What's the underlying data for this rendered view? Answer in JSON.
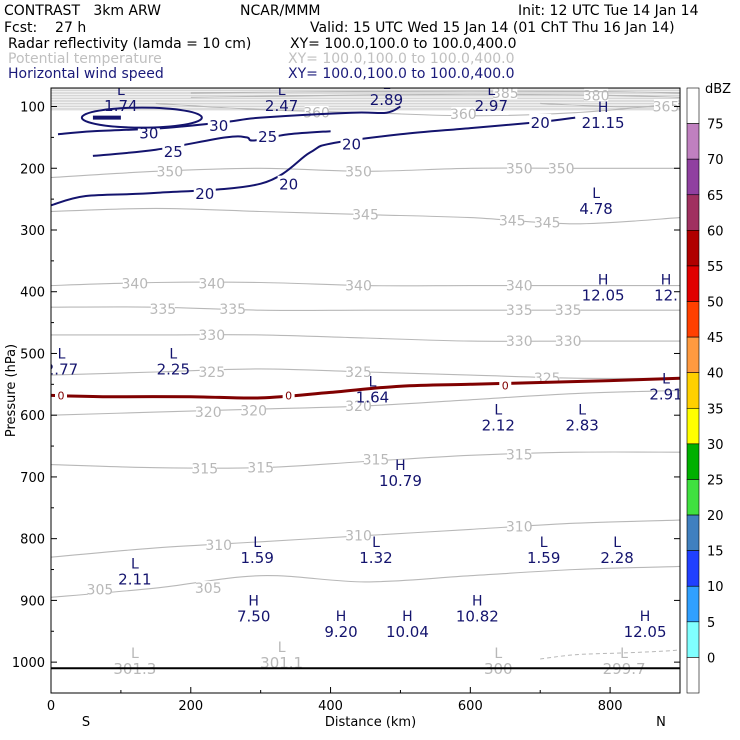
{
  "header": {
    "model": "CONTRAST   3km ARW",
    "center": "NCAR/MMM",
    "init": "Init: 12 UTC Tue 14 Jan 14",
    "fcst": "Fcst:    27 h",
    "valid": "Valid: 15 UTC Wed 15 Jan 14 (01 ChT Thu 16 Jan 14)",
    "fields": [
      {
        "name": "Radar reflectivity (lamda = 10 cm)",
        "xy": "XY= 100.0,100.0 to 100.0,400.0",
        "color": "#000000"
      },
      {
        "name": "Potential temperature",
        "xy": "XY= 100.0,100.0 to 100.0,400.0",
        "color": "#c0c0c0"
      },
      {
        "name": "Horizontal wind speed",
        "xy": "XY= 100.0,100.0 to 100.0,400.0",
        "color": "#1a1a7a"
      }
    ]
  },
  "chart_data": {
    "type": "cross-section contour",
    "xlabel": "Distance (km)",
    "ylabel": "Pressure (hPa)",
    "xlim": [
      0,
      900
    ],
    "ylim": [
      1050,
      70
    ],
    "x_ticks": [
      0,
      200,
      400,
      600,
      800
    ],
    "y_ticks": [
      100,
      200,
      300,
      400,
      500,
      600,
      700,
      800,
      900,
      1000
    ],
    "x_end_labels": [
      "S",
      "N"
    ],
    "colorbar": {
      "unit": "dBZ",
      "levels": [
        75,
        70,
        65,
        60,
        55,
        50,
        45,
        40,
        35,
        30,
        25,
        20,
        15,
        10,
        5,
        0
      ],
      "colors": [
        "#ffffff",
        "#c080c0",
        "#9040a0",
        "#a03060",
        "#b00000",
        "#e00000",
        "#ff4000",
        "#ff9a40",
        "#ffd000",
        "#ffff00",
        "#00b000",
        "#40e040",
        "#4080c0",
        "#2040ff",
        "#30a0ff",
        "#80ffff",
        "#ffffff"
      ]
    },
    "theta_contours": {
      "color": "#b8b8b8",
      "lines": [
        {
          "value": 305,
          "x": [
            0,
            150,
            300,
            450,
            600,
            750,
            900
          ],
          "p": [
            895,
            880,
            860,
            870,
            860,
            850,
            845
          ],
          "labels": [
            [
              70,
              882
            ],
            [
              225,
              880
            ]
          ]
        },
        {
          "value": 310,
          "x": [
            0,
            150,
            300,
            450,
            600,
            750,
            900
          ],
          "p": [
            830,
            815,
            805,
            795,
            785,
            775,
            770
          ],
          "labels": [
            [
              240,
              810
            ],
            [
              440,
              795
            ],
            [
              670,
              780
            ]
          ]
        },
        {
          "value": 315,
          "x": [
            0,
            150,
            300,
            450,
            600,
            750,
            900
          ],
          "p": [
            680,
            685,
            685,
            675,
            665,
            660,
            660
          ],
          "labels": [
            [
              220,
              686
            ],
            [
              300,
              685
            ],
            [
              465,
              672
            ],
            [
              670,
              664
            ]
          ]
        },
        {
          "value": 320,
          "x": [
            0,
            150,
            300,
            450,
            600,
            750,
            900
          ],
          "p": [
            600,
            595,
            590,
            585,
            575,
            565,
            560
          ],
          "labels": [
            [
              225,
              595
            ],
            [
              290,
              592
            ],
            [
              440,
              585
            ]
          ]
        },
        {
          "value": 325,
          "x": [
            0,
            150,
            300,
            450,
            600,
            750,
            900
          ],
          "p": [
            535,
            530,
            525,
            530,
            535,
            540,
            540
          ],
          "labels": [
            [
              230,
              530
            ],
            [
              440,
              530
            ],
            [
              710,
              540
            ]
          ]
        },
        {
          "value": 330,
          "x": [
            0,
            150,
            300,
            450,
            600,
            750,
            900
          ],
          "p": [
            470,
            470,
            470,
            475,
            480,
            480,
            480
          ],
          "labels": [
            [
              230,
              470
            ],
            [
              670,
              480
            ],
            [
              740,
              480
            ]
          ]
        },
        {
          "value": 335,
          "x": [
            0,
            150,
            300,
            450,
            600,
            750,
            900
          ],
          "p": [
            425,
            425,
            430,
            430,
            430,
            430,
            430
          ],
          "labels": [
            [
              160,
              428
            ],
            [
              260,
              428
            ],
            [
              670,
              430
            ],
            [
              740,
              430
            ]
          ]
        },
        {
          "value": 340,
          "x": [
            0,
            150,
            300,
            450,
            600,
            750,
            900
          ],
          "p": [
            390,
            385,
            385,
            390,
            390,
            390,
            390
          ],
          "labels": [
            [
              120,
              387
            ],
            [
              230,
              387
            ],
            [
              440,
              390
            ],
            [
              670,
              390
            ]
          ]
        },
        {
          "value": 345,
          "x": [
            0,
            150,
            300,
            450,
            600,
            750,
            900
          ],
          "p": [
            270,
            265,
            270,
            275,
            280,
            290,
            280
          ],
          "labels": [
            [
              450,
              275
            ],
            [
              660,
              285
            ],
            [
              710,
              288
            ]
          ]
        },
        {
          "value": 350,
          "x": [
            0,
            150,
            300,
            450,
            600,
            750,
            900
          ],
          "p": [
            215,
            205,
            200,
            205,
            200,
            200,
            200
          ],
          "labels": [
            [
              170,
              205
            ],
            [
              440,
              205
            ],
            [
              670,
              200
            ],
            [
              730,
              200
            ]
          ]
        },
        {
          "value": 360,
          "x": [
            150,
            300,
            450,
            600,
            750,
            900
          ],
          "p": [
            95,
            105,
            110,
            115,
            110,
            95
          ],
          "labels": [
            [
              380,
              110
            ],
            [
              590,
              112
            ]
          ]
        },
        {
          "value": 365,
          "x": [
            700,
            800,
            900
          ],
          "p": [
            95,
            100,
            100
          ],
          "labels": [
            [
              880,
              100
            ]
          ]
        },
        {
          "value": 380,
          "x": [
            200,
            400,
            600,
            800,
            900
          ],
          "p": [
            85,
            82,
            80,
            82,
            85
          ],
          "labels": [
            [
              780,
              82
            ]
          ]
        },
        {
          "value": 385,
          "x": [
            200,
            400,
            600,
            800,
            900
          ],
          "p": [
            78,
            76,
            75,
            76,
            78
          ],
          "labels": [
            [
              650,
              78
            ]
          ]
        }
      ]
    },
    "wind_contours": {
      "color": "#14146e",
      "lines": [
        {
          "value": 20,
          "x": [
            0,
            50,
            150,
            300,
            370,
            400,
            500,
            600,
            700,
            750
          ],
          "p": [
            260,
            245,
            240,
            225,
            175,
            160,
            145,
            135,
            125,
            118
          ],
          "labels": [
            [
              220,
              240
            ],
            [
              340,
              225
            ],
            [
              430,
              160
            ],
            [
              700,
              125
            ]
          ]
        },
        {
          "value": 25,
          "x": [
            60,
            150,
            250,
            280,
            290,
            340,
            400
          ],
          "p": [
            180,
            170,
            150,
            150,
            155,
            145,
            140
          ],
          "labels": [
            [
              175,
              172
            ],
            [
              310,
              148
            ]
          ]
        },
        {
          "value": 30,
          "x": [
            10,
            60,
            160,
            250,
            300,
            430,
            480,
            500
          ],
          "p": [
            145,
            140,
            135,
            125,
            118,
            110,
            110,
            100
          ],
          "labels": [
            [
              140,
              142
            ],
            [
              240,
              130
            ]
          ]
        }
      ]
    },
    "freezing_line": {
      "color": "#800000",
      "label": "0",
      "x": [
        0,
        80,
        200,
        300,
        400,
        500,
        600,
        700,
        800,
        900
      ],
      "p": [
        568,
        570,
        570,
        572,
        563,
        553,
        550,
        547,
        544,
        540
      ],
      "labels": [
        [
          0,
          568
        ],
        [
          340,
          568
        ],
        [
          650,
          552
        ]
      ]
    },
    "surface_line_p": 1010,
    "marks": [
      {
        "t": "L",
        "v": "1.74",
        "x": 100,
        "p": 88
      },
      {
        "t": "L",
        "v": "2.47",
        "x": 330,
        "p": 88
      },
      {
        "t": "L",
        "v": "2.89",
        "x": 480,
        "p": 78
      },
      {
        "t": "L",
        "v": "2.97",
        "x": 630,
        "p": 88
      },
      {
        "t": "H",
        "v": "21.15",
        "x": 790,
        "p": 115
      },
      {
        "t": "L",
        "v": "4.78",
        "x": 780,
        "p": 255
      },
      {
        "t": "H",
        "v": "12.05",
        "x": 790,
        "p": 395
      },
      {
        "t": "H",
        "v": "12.",
        "x": 880,
        "p": 395
      },
      {
        "t": "L",
        "v": "2.77",
        "x": 15,
        "p": 515
      },
      {
        "t": "L",
        "v": "2.25",
        "x": 175,
        "p": 515
      },
      {
        "t": "L",
        "v": "1.64",
        "x": 460,
        "p": 560
      },
      {
        "t": "L",
        "v": "2.91",
        "x": 880,
        "p": 555
      },
      {
        "t": "L",
        "v": "2.12",
        "x": 640,
        "p": 605
      },
      {
        "t": "L",
        "v": "2.83",
        "x": 760,
        "p": 605
      },
      {
        "t": "H",
        "v": "10.79",
        "x": 500,
        "p": 695
      },
      {
        "t": "L",
        "v": "1.59",
        "x": 295,
        "p": 820
      },
      {
        "t": "L",
        "v": "1.32",
        "x": 465,
        "p": 820
      },
      {
        "t": "L",
        "v": "1.59",
        "x": 705,
        "p": 820
      },
      {
        "t": "L",
        "v": "2.28",
        "x": 810,
        "p": 820
      },
      {
        "t": "L",
        "v": "2.11",
        "x": 120,
        "p": 855
      },
      {
        "t": "H",
        "v": "7.50",
        "x": 290,
        "p": 915
      },
      {
        "t": "H",
        "v": "9.20",
        "x": 415,
        "p": 940
      },
      {
        "t": "H",
        "v": "10.04",
        "x": 510,
        "p": 940
      },
      {
        "t": "H",
        "v": "10.82",
        "x": 610,
        "p": 915
      },
      {
        "t": "H",
        "v": "12.05",
        "x": 850,
        "p": 940
      },
      {
        "t": "L",
        "v": "301.3",
        "x": 120,
        "p": 1000,
        "gray": true
      },
      {
        "t": "L",
        "v": "301.1",
        "x": 330,
        "p": 990,
        "gray": true
      },
      {
        "t": "L",
        "v": "300",
        "x": 640,
        "p": 1000,
        "gray": true
      },
      {
        "t": "L",
        "v": "299.7",
        "x": 820,
        "p": 1000,
        "gray": true
      }
    ]
  }
}
